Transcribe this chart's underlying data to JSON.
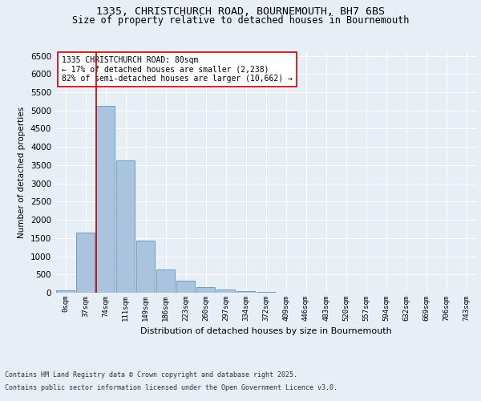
{
  "title_line1": "1335, CHRISTCHURCH ROAD, BOURNEMOUTH, BH7 6BS",
  "title_line2": "Size of property relative to detached houses in Bournemouth",
  "xlabel": "Distribution of detached houses by size in Bournemouth",
  "ylabel": "Number of detached properties",
  "footer_line1": "Contains HM Land Registry data © Crown copyright and database right 2025.",
  "footer_line2": "Contains public sector information licensed under the Open Government Licence v3.0.",
  "bar_labels": [
    "0sqm",
    "37sqm",
    "74sqm",
    "111sqm",
    "149sqm",
    "186sqm",
    "223sqm",
    "260sqm",
    "297sqm",
    "334sqm",
    "372sqm",
    "409sqm",
    "446sqm",
    "483sqm",
    "520sqm",
    "557sqm",
    "594sqm",
    "632sqm",
    "669sqm",
    "706sqm",
    "743sqm"
  ],
  "bar_values": [
    75,
    1640,
    5120,
    3620,
    1430,
    630,
    320,
    145,
    90,
    50,
    30,
    0,
    0,
    0,
    0,
    0,
    0,
    0,
    0,
    0,
    0
  ],
  "bar_color": "#aac4e0",
  "bar_edge_color": "#6a9fc0",
  "vline_x": 2,
  "vline_color": "#cc0000",
  "annotation_text": "1335 CHRISTCHURCH ROAD: 80sqm\n← 17% of detached houses are smaller (2,238)\n82% of semi-detached houses are larger (10,662) →",
  "annotation_box_color": "#ffffff",
  "annotation_box_edge": "#cc0000",
  "ylim": [
    0,
    6600
  ],
  "yticks": [
    0,
    500,
    1000,
    1500,
    2000,
    2500,
    3000,
    3500,
    4000,
    4500,
    5000,
    5500,
    6000,
    6500
  ],
  "background_color": "#e8eef5",
  "plot_background": "#e8eef5",
  "grid_color": "#ffffff",
  "title_fontsize": 9.5,
  "subtitle_fontsize": 8.5
}
